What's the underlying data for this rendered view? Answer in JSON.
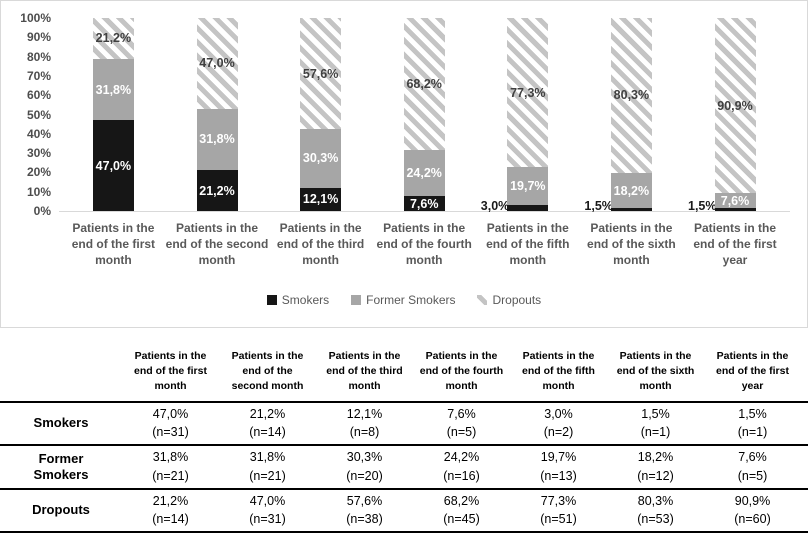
{
  "chart_data": {
    "type": "bar",
    "subtype": "100-percent-stacked-column",
    "categories": [
      "Patients in the end of the first month",
      "Patients in the end of the second month",
      "Patients in the end of the third month",
      "Patients in the end of the fourth month",
      "Patients in the end of the fifth month",
      "Patients in the end of the sixth month",
      "Patients in the end of the first year"
    ],
    "series": [
      {
        "name": "Smokers",
        "style": "solid-black",
        "values": [
          47.0,
          21.2,
          12.1,
          7.6,
          3.0,
          1.5,
          1.5
        ],
        "labels": [
          "47,0%",
          "21,2%",
          "12,1%",
          "7,6%",
          "3,0%",
          "1,5%",
          "1,5%"
        ]
      },
      {
        "name": "Former Smokers",
        "style": "solid-gray",
        "values": [
          31.8,
          31.8,
          30.3,
          24.2,
          19.7,
          18.2,
          7.6
        ],
        "labels": [
          "31,8%",
          "31,8%",
          "30,3%",
          "24,2%",
          "19,7%",
          "18,2%",
          "7,6%"
        ]
      },
      {
        "name": "Dropouts",
        "style": "diagonal-stripe",
        "values": [
          21.2,
          47.0,
          57.6,
          68.2,
          77.3,
          80.3,
          90.9
        ],
        "labels": [
          "21,2%",
          "47,0%",
          "57,6%",
          "68,2%",
          "77,3%",
          "80,3%",
          "90,9%"
        ]
      }
    ],
    "y_ticks": [
      "100%",
      "90%",
      "80%",
      "70%",
      "60%",
      "50%",
      "40%",
      "30%",
      "20%",
      "10%",
      "0%"
    ],
    "ylim": [
      0,
      100
    ],
    "grid": false,
    "legend_position": "bottom",
    "legend": [
      "Smokers",
      "Former Smokers",
      "Dropouts"
    ]
  },
  "table": {
    "col_headers": [
      "Patients in the end of the first month",
      "Patients in the end of the second month",
      "Patients in the end of the third month",
      "Patients in the end of the fourth month",
      "Patients in the end of the fifth month",
      "Patients in the end of the sixth month",
      "Patients in the end of the first year"
    ],
    "rows": [
      {
        "label": "Smokers",
        "cells": [
          {
            "pct": "47,0%",
            "n": "(n=31)"
          },
          {
            "pct": "21,2%",
            "n": "(n=14)"
          },
          {
            "pct": "12,1%",
            "n": "(n=8)"
          },
          {
            "pct": "7,6%",
            "n": "(n=5)"
          },
          {
            "pct": "3,0%",
            "n": "(n=2)"
          },
          {
            "pct": "1,5%",
            "n": "(n=1)"
          },
          {
            "pct": "1,5%",
            "n": "(n=1)"
          }
        ]
      },
      {
        "label": "Former Smokers",
        "cells": [
          {
            "pct": "31,8%",
            "n": "(n=21)"
          },
          {
            "pct": "31,8%",
            "n": "(n=21)"
          },
          {
            "pct": "30,3%",
            "n": "(n=20)"
          },
          {
            "pct": "24,2%",
            "n": "(n=16)"
          },
          {
            "pct": "19,7%",
            "n": "(n=13)"
          },
          {
            "pct": "18,2%",
            "n": "(n=12)"
          },
          {
            "pct": "7,6%",
            "n": "(n=5)"
          }
        ]
      },
      {
        "label": "Dropouts",
        "cells": [
          {
            "pct": "21,2%",
            "n": "(n=14)"
          },
          {
            "pct": "47,0%",
            "n": "(n=31)"
          },
          {
            "pct": "57,6%",
            "n": "(n=38)"
          },
          {
            "pct": "68,2%",
            "n": "(n=45)"
          },
          {
            "pct": "77,3%",
            "n": "(n=51)"
          },
          {
            "pct": "80,3%",
            "n": "(n=53)"
          },
          {
            "pct": "90,9%",
            "n": "(n=60)"
          }
        ]
      }
    ]
  },
  "colors": {
    "smokers": "#161616",
    "former_smokers": "#a6a6a6",
    "dropout_stripe": "#c4c4c4",
    "axis_text": "#595959",
    "axis_line": "#d9d9d9",
    "panel_border": "#d9d9d9",
    "table_rule": "#000000"
  }
}
